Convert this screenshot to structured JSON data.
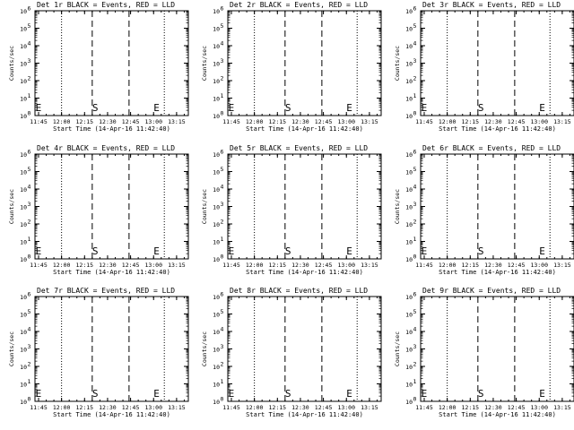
{
  "chart_data": [
    {
      "type": "line",
      "title": "Det 1r BLACK = Events, RED = LLD",
      "xlabel": "Start Time (14-Apr-16 11:42:40)",
      "ylabel": "Counts/sec"
    },
    {
      "type": "line",
      "title": "Det 2r BLACK = Events, RED = LLD",
      "xlabel": "Start Time (14-Apr-16 11:42:40)",
      "ylabel": "Counts/sec"
    },
    {
      "type": "line",
      "title": "Det 3r BLACK = Events, RED = LLD",
      "xlabel": "Start Time (14-Apr-16 11:42:40)",
      "ylabel": "Counts/sec"
    },
    {
      "type": "line",
      "title": "Det 4r BLACK = Events, RED = LLD",
      "xlabel": "Start Time (14-Apr-16 11:42:40)",
      "ylabel": "Counts/sec"
    },
    {
      "type": "line",
      "title": "Det 5r BLACK = Events, RED = LLD",
      "xlabel": "Start Time (14-Apr-16 11:42:40)",
      "ylabel": "Counts/sec"
    },
    {
      "type": "line",
      "title": "Det 6r BLACK = Events, RED = LLD",
      "xlabel": "Start Time (14-Apr-16 11:42:40)",
      "ylabel": "Counts/sec"
    },
    {
      "type": "line",
      "title": "Det 7r BLACK = Events, RED = LLD",
      "xlabel": "Start Time (14-Apr-16 11:42:40)",
      "ylabel": "Counts/sec"
    },
    {
      "type": "line",
      "title": "Det 8r BLACK = Events, RED = LLD",
      "xlabel": "Start Time (14-Apr-16 11:42:40)",
      "ylabel": "Counts/sec"
    },
    {
      "type": "line",
      "title": "Det 9r BLACK = Events, RED = LLD",
      "xlabel": "Start Time (14-Apr-16 11:42:40)",
      "ylabel": "Counts/sec"
    }
  ],
  "shared_axes": {
    "x_ticks": [
      "11:45",
      "12:00",
      "12:15",
      "12:30",
      "12:45",
      "13:00",
      "13:15"
    ],
    "x_range": [
      "11:42:40",
      "13:22:40"
    ],
    "y_scale": "log",
    "y_range": [
      1,
      1000000
    ],
    "y_ticks": [
      {
        "value": 1,
        "mantissa": "10",
        "exp": "0"
      },
      {
        "value": 10,
        "mantissa": "10",
        "exp": "1"
      },
      {
        "value": 100,
        "mantissa": "10",
        "exp": "2"
      },
      {
        "value": 1000,
        "mantissa": "10",
        "exp": "3"
      },
      {
        "value": 10000,
        "mantissa": "10",
        "exp": "4"
      },
      {
        "value": 100000,
        "mantissa": "10",
        "exp": "5"
      },
      {
        "value": 1000000,
        "mantissa": "10",
        "exp": "6"
      }
    ],
    "dotted_lines": [
      "12:00",
      "13:07"
    ],
    "dashed_lines": [
      "12:20",
      "12:44"
    ],
    "marker_labels": [
      {
        "text": "E",
        "at": "11:43"
      },
      {
        "text": "S",
        "at": "12:20"
      },
      {
        "text": "E",
        "at": "13:00"
      }
    ]
  }
}
